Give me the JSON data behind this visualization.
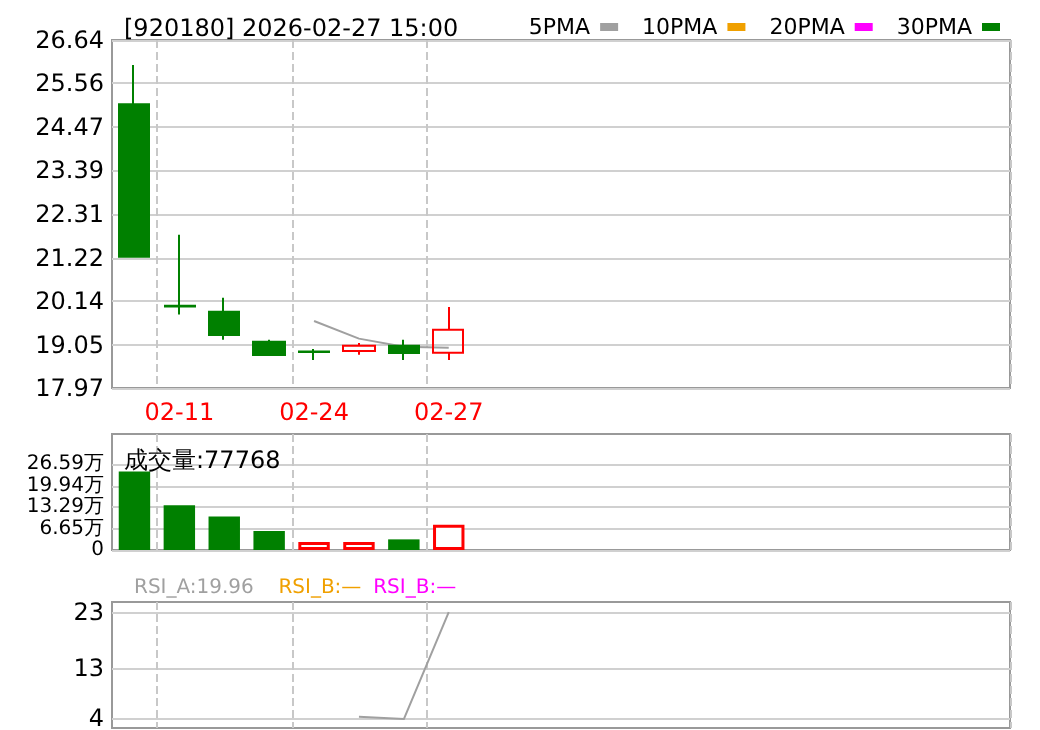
{
  "chart_data": [
    {
      "type": "candlestick",
      "title": "[920180] 2026-02-27 15:00",
      "categories": [
        null,
        "02-11",
        null,
        null,
        "02-24",
        null,
        null,
        "02-27",
        null,
        null,
        null,
        null,
        null,
        null,
        null,
        null,
        null,
        null,
        null,
        null
      ],
      "ohlc": [
        [
          25.04,
          26.02,
          21.24,
          21.24
        ],
        [
          20.02,
          21.79,
          19.8,
          20.0
        ],
        [
          19.87,
          20.22,
          19.17,
          19.29
        ],
        [
          19.12,
          19.17,
          18.79,
          18.79
        ],
        [
          18.88,
          18.94,
          18.67,
          18.87
        ],
        [
          18.89,
          19.09,
          18.8,
          19.02
        ],
        [
          19.02,
          19.17,
          18.67,
          18.84
        ],
        [
          18.85,
          19.99,
          18.67,
          19.42
        ],
        null,
        null,
        null,
        null,
        null,
        null,
        null,
        null,
        null,
        null,
        null,
        null
      ],
      "colors": [
        "#008000",
        "#008000",
        "#008000",
        "#008000",
        "#008000",
        "#ff0000",
        "#008000",
        "#ff0000",
        null,
        null,
        null,
        null,
        null,
        null,
        null,
        null,
        null,
        null,
        null,
        null
      ],
      "series": [
        {
          "name": "5PMA",
          "type": "line",
          "color": "#a0a0a0",
          "values": [
            null,
            null,
            null,
            null,
            19.64,
            19.2,
            19.0,
            18.97,
            null,
            null,
            null,
            null,
            null,
            null,
            null,
            null,
            null,
            null,
            null,
            null
          ]
        },
        {
          "name": "10PMA",
          "type": "line",
          "color": "#f0a000",
          "values": [
            null,
            null,
            null,
            null,
            null,
            null,
            null,
            null,
            null,
            null,
            null,
            null,
            null,
            null,
            null,
            null,
            null,
            null,
            null,
            null
          ]
        },
        {
          "name": "20PMA",
          "type": "line",
          "color": "#ff00ff",
          "values": [
            null,
            null,
            null,
            null,
            null,
            null,
            null,
            null,
            null,
            null,
            null,
            null,
            null,
            null,
            null,
            null,
            null,
            null,
            null,
            null
          ]
        },
        {
          "name": "30PMA",
          "type": "line",
          "color": "#008000",
          "values": [
            null,
            null,
            null,
            null,
            null,
            null,
            null,
            null,
            null,
            null,
            null,
            null,
            null,
            null,
            null,
            null,
            null,
            null,
            null,
            null
          ]
        }
      ],
      "ylim": [
        17.97,
        26.64
      ],
      "yticks": [
        17.97,
        19.05,
        20.14,
        21.22,
        22.31,
        23.39,
        24.47,
        25.56,
        26.64
      ],
      "grid": true,
      "legend": "top right",
      "marker": "none"
    },
    {
      "type": "bar",
      "title": "成交量:77768",
      "categories": [
        null,
        "02-11",
        null,
        null,
        "02-24",
        null,
        null,
        "02-27",
        null,
        null,
        null,
        null,
        null,
        null,
        null,
        null,
        null,
        null,
        null,
        null
      ],
      "values": [
        24.4,
        13.9,
        10.4,
        5.9,
        2.5,
        2.5,
        3.3,
        7.8,
        null,
        null,
        null,
        null,
        null,
        null,
        null,
        null,
        null,
        null,
        null,
        null
      ],
      "colors": [
        "#008000",
        "#008000",
        "#008000",
        "#008000",
        "#ff0000",
        "#ff0000",
        "#008000",
        "#ff0000",
        null,
        null,
        null,
        null,
        null,
        null,
        null,
        null,
        null,
        null,
        null,
        null
      ],
      "ylim": [
        0,
        36
      ],
      "yticks": [
        0,
        {
          "value": 6.65,
          "label": "6.65万"
        },
        {
          "value": 13.29,
          "label": "13.29万"
        },
        {
          "value": 19.94,
          "label": "19.94万"
        },
        {
          "value": 26.59,
          "label": "26.59万"
        }
      ],
      "grid": true,
      "tick_labels": "y"
    },
    {
      "type": "line",
      "categories": [
        null,
        "02-11",
        null,
        null,
        "02-24",
        null,
        null,
        "02-27",
        null,
        null,
        null,
        null,
        null,
        null,
        null,
        null,
        null,
        null,
        null,
        null
      ],
      "series": [
        {
          "name": "RSI_A:19.96",
          "color": "#a0a0a0",
          "values": [
            null,
            null,
            null,
            null,
            null,
            4.2,
            3.8,
            23,
            null,
            null,
            null,
            null,
            null,
            null,
            null,
            null,
            null,
            null,
            null,
            null
          ]
        },
        {
          "name": "RSI_B:—",
          "color": "#f0a000",
          "values": [
            null,
            null,
            null,
            null,
            null,
            null,
            null,
            null,
            null,
            null,
            null,
            null,
            null,
            null,
            null,
            null,
            null,
            null,
            null,
            null
          ]
        },
        {
          "name": "RSI_B:—",
          "color": "#ff00ff",
          "values": [
            null,
            null,
            null,
            null,
            null,
            null,
            null,
            null,
            null,
            null,
            null,
            null,
            null,
            null,
            null,
            null,
            null,
            null,
            null,
            null
          ]
        }
      ],
      "ylim": [
        2.2,
        24.8
      ],
      "yticks": [
        4,
        13,
        23
      ],
      "grid": true,
      "tick_labels": "y",
      "legend": "top left",
      "marker": "none"
    }
  ]
}
